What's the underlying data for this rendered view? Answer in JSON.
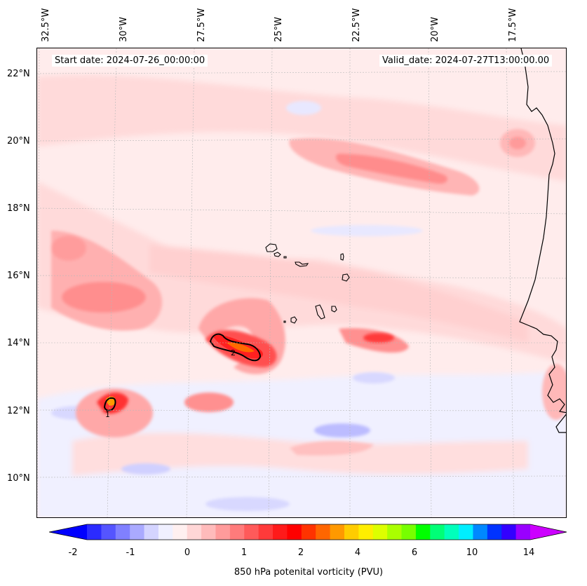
{
  "map": {
    "start_date": "Start date: 2024-07-26_00:00:00",
    "valid_date": "Valid_date: 2024-07-27T13:00:00.00",
    "lon_labels": [
      "32.5°W",
      "30°W",
      "27.5°W",
      "25°W",
      "22.5°W",
      "20°W",
      "17.5°W"
    ],
    "lat_labels": [
      "22°N",
      "20°N",
      "18°N",
      "16°N",
      "14°N",
      "12°N",
      "10°N"
    ],
    "contour_labels": [
      "2",
      "1"
    ]
  },
  "colorbar": {
    "ticks": [
      "-2",
      "-1",
      "0",
      "1",
      "2",
      "4",
      "6",
      "10",
      "14"
    ],
    "label": "850 hPa potenital vorticity (PVU)",
    "colors": [
      "#0000ff",
      "#2b2bff",
      "#5555ff",
      "#8080ff",
      "#aaaaff",
      "#d4d4ff",
      "#f0f0ff",
      "#fff0f0",
      "#ffd6d6",
      "#ffbbbb",
      "#ff9b9b",
      "#ff7b7b",
      "#ff5a5a",
      "#ff3a3a",
      "#ff1a1a",
      "#ff0000",
      "#ff3300",
      "#ff6600",
      "#ff9900",
      "#ffcc00",
      "#ffee00",
      "#ddff00",
      "#aaff00",
      "#77ff00",
      "#00ff00",
      "#00ff77",
      "#00ffbb",
      "#00eeff",
      "#0088ff",
      "#0033ff",
      "#3300ff",
      "#9900ff",
      "#cc00ff"
    ]
  }
}
